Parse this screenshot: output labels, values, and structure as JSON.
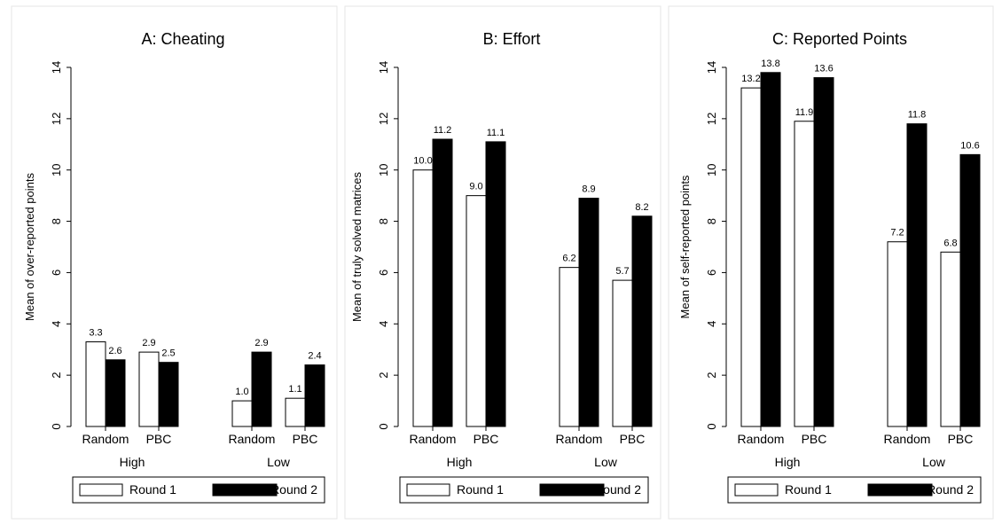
{
  "chart_data": [
    {
      "type": "bar",
      "title": "A: Cheating",
      "ylabel": "Mean of over-reported points",
      "ylim": [
        0,
        14
      ],
      "yticks": [
        0,
        2,
        4,
        6,
        8,
        10,
        12,
        14
      ],
      "groups": [
        {
          "label": "High",
          "categories": [
            "Random",
            "PBC"
          ]
        },
        {
          "label": "Low",
          "categories": [
            "Random",
            "PBC"
          ]
        }
      ],
      "series": [
        {
          "name": "Round 1",
          "color": "#ffffff",
          "values": [
            3.3,
            2.9,
            1.0,
            1.1
          ],
          "labels": [
            "3.3",
            "2.9",
            "1.0",
            "1.1"
          ]
        },
        {
          "name": "Round 2",
          "color": "#000000",
          "values": [
            2.6,
            2.5,
            2.9,
            2.4
          ],
          "labels": [
            "2.6",
            "2.5",
            "2.9",
            "2.4"
          ]
        }
      ],
      "legend_position": "bottom"
    },
    {
      "type": "bar",
      "title": "B: Effort",
      "ylabel": "Mean of truly solved matrices",
      "ylim": [
        0,
        14
      ],
      "yticks": [
        0,
        2,
        4,
        6,
        8,
        10,
        12,
        14
      ],
      "groups": [
        {
          "label": "High",
          "categories": [
            "Random",
            "PBC"
          ]
        },
        {
          "label": "Low",
          "categories": [
            "Random",
            "PBC"
          ]
        }
      ],
      "series": [
        {
          "name": "Round 1",
          "color": "#ffffff",
          "values": [
            10.0,
            9.0,
            6.2,
            5.7
          ],
          "labels": [
            "10.0",
            "9.0",
            "6.2",
            "5.7"
          ]
        },
        {
          "name": "Round 2",
          "color": "#000000",
          "values": [
            11.2,
            11.1,
            8.9,
            8.2
          ],
          "labels": [
            "11.2",
            "11.1",
            "8.9",
            "8.2"
          ]
        }
      ],
      "legend_position": "bottom"
    },
    {
      "type": "bar",
      "title": "C: Reported Points",
      "ylabel": "Mean of self-reported points",
      "ylim": [
        0,
        14
      ],
      "yticks": [
        0,
        2,
        4,
        6,
        8,
        10,
        12,
        14
      ],
      "groups": [
        {
          "label": "High",
          "categories": [
            "Random",
            "PBC"
          ]
        },
        {
          "label": "Low",
          "categories": [
            "Random",
            "PBC"
          ]
        }
      ],
      "series": [
        {
          "name": "Round 1",
          "color": "#ffffff",
          "values": [
            13.2,
            11.9,
            7.2,
            6.8
          ],
          "labels": [
            "13.2",
            "11.9",
            "7.2",
            "6.8"
          ]
        },
        {
          "name": "Round 2",
          "color": "#000000",
          "values": [
            13.8,
            13.6,
            11.8,
            10.6
          ],
          "labels": [
            "13.8",
            "13.6",
            "11.8",
            "10.6"
          ]
        }
      ],
      "legend_position": "bottom"
    }
  ]
}
